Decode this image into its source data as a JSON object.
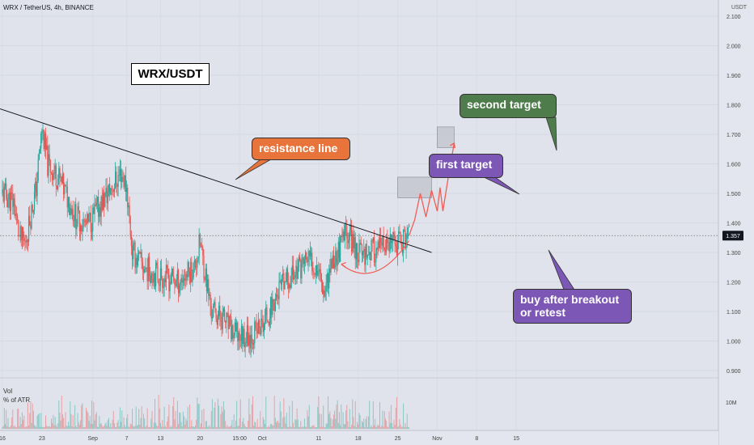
{
  "header": {
    "symbol_line": "WRX / TetherUS, 4h, BINANCE",
    "currency": "USDT"
  },
  "title_box": "WRX/USDT",
  "volume_panel": {
    "label1": "Vol",
    "label2": "% of ATR",
    "axis_label": "10M"
  },
  "annotations": {
    "resistance": "resistance line",
    "first_target": "first target",
    "second_target": "second target",
    "buy": [
      "buy after breakout",
      "or retest"
    ]
  },
  "colors": {
    "background": "#e0e3eb",
    "up_candle": "#26a69a",
    "down_candle": "#ef5350",
    "resistance_callout": "#e8743b",
    "target_callout": "#7c57b5",
    "second_target_callout": "#4e7c4a",
    "projection": "#f25c54"
  },
  "chart_data": {
    "type": "candlestick",
    "symbol": "WRX/USDT",
    "timeframe": "4h",
    "exchange": "BINANCE",
    "y_axis": {
      "ylim": [
        0.87,
        2.23
      ],
      "ticks": [
        "2.100",
        "2.000",
        "1.900",
        "1.800",
        "1.700",
        "1.600",
        "1.500",
        "1.400",
        "1.300",
        "1.200",
        "1.100",
        "1.000",
        "0.900"
      ],
      "ticks_values": [
        2.1,
        2.0,
        1.9,
        1.8,
        1.7,
        1.6,
        1.5,
        1.4,
        1.3,
        1.2,
        1.1,
        1.0,
        0.9
      ]
    },
    "x_axis": {
      "ticks": [
        "16",
        "23",
        "Sep",
        "7",
        "13",
        "20",
        "15:00",
        "Oct",
        "11",
        "18",
        "25",
        "Nov",
        "8",
        "15"
      ]
    },
    "current_price": "1.357",
    "price_path": [
      [
        "Aug 16",
        1.5
      ],
      [
        "Aug 18",
        1.47
      ],
      [
        "Aug 19",
        1.35
      ],
      [
        "Aug 20",
        1.33
      ],
      [
        "Aug 22",
        1.52
      ],
      [
        "Aug 23",
        1.72
      ],
      [
        "Aug 24",
        1.6
      ],
      [
        "Aug 26",
        1.55
      ],
      [
        "Aug 29",
        1.42
      ],
      [
        "Aug 31",
        1.39
      ],
      [
        "Sep 3",
        1.48
      ],
      [
        "Sep 6",
        1.57
      ],
      [
        "Sep 7",
        1.52
      ],
      [
        "Sep 8",
        1.3
      ],
      [
        "Sep 10",
        1.25
      ],
      [
        "Sep 13",
        1.22
      ],
      [
        "Sep 16",
        1.2
      ],
      [
        "Sep 19",
        1.25
      ],
      [
        "Sep 20",
        1.33
      ],
      [
        "Sep 21",
        1.22
      ],
      [
        "Sep 22",
        1.1
      ],
      [
        "Sep 24",
        1.08
      ],
      [
        "Sep 26",
        1.02
      ],
      [
        "Sep 29",
        1.02
      ],
      [
        "Oct 1",
        1.05
      ],
      [
        "Oct 4",
        1.17
      ],
      [
        "Oct 7",
        1.24
      ],
      [
        "Oct 9",
        1.28
      ],
      [
        "Oct 11",
        1.25
      ],
      [
        "Oct 12",
        1.17
      ],
      [
        "Oct 13",
        1.25
      ],
      [
        "Oct 15",
        1.32
      ],
      [
        "Oct 16",
        1.38
      ],
      [
        "Oct 18",
        1.3
      ],
      [
        "Oct 22",
        1.31
      ],
      [
        "Oct 25",
        1.33
      ],
      [
        "Oct 27",
        1.357
      ]
    ],
    "resistance_line": {
      "from": [
        "Aug 15",
        1.79
      ],
      "to": [
        "Oct 31",
        1.3
      ]
    },
    "target_zones": [
      {
        "label": "first target",
        "from": [
          "Oct 25",
          1.485
        ],
        "to": [
          "Oct 31",
          1.555
        ]
      },
      {
        "label": "second target",
        "from": [
          "Nov 1",
          1.655
        ],
        "to": [
          "Nov 4",
          1.725
        ]
      }
    ],
    "projection_path": [
      [
        "Oct 27",
        1.357
      ],
      [
        "Oct 28",
        1.41
      ],
      [
        "Oct 29",
        1.5
      ],
      [
        "Oct 30",
        1.42
      ],
      [
        "Oct 31",
        1.51
      ],
      [
        "Nov 1",
        1.44
      ],
      [
        "Nov 1",
        1.52
      ],
      [
        "Nov 2",
        1.44
      ],
      [
        "Nov 3",
        1.56
      ],
      [
        "Nov 4",
        1.67
      ]
    ],
    "volume": {
      "unit_label": "10M"
    }
  }
}
